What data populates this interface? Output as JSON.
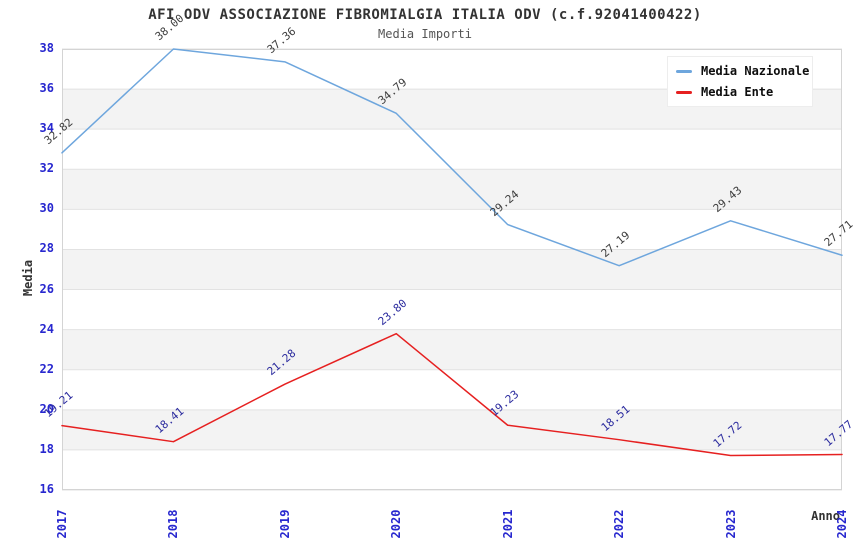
{
  "header": {
    "title": "AFI ODV ASSOCIAZIONE FIBROMIALGIA ITALIA ODV (c.f.92041400422)",
    "subtitle": "Media Importi"
  },
  "chart_data": {
    "type": "line",
    "title": "AFI ODV ASSOCIAZIONE FIBROMIALGIA ITALIA ODV (c.f.92041400422)",
    "subtitle": "Media Importi",
    "xlabel": "Anno",
    "ylabel": "Media",
    "categories": [
      "2017",
      "2018",
      "2019",
      "2020",
      "2021",
      "2022",
      "2023",
      "2024"
    ],
    "series": [
      {
        "name": "Media Nazionale",
        "color": "#6ea6dd",
        "label_color": "#3d3d3d",
        "values": [
          32.82,
          38.0,
          37.36,
          34.79,
          29.24,
          27.19,
          29.43,
          27.71
        ]
      },
      {
        "name": "Media Ente",
        "color": "#e62020",
        "label_color": "#2a2a9e",
        "values": [
          19.21,
          18.41,
          21.28,
          23.8,
          19.23,
          18.51,
          17.72,
          17.77
        ]
      }
    ],
    "ylim": [
      16,
      38
    ],
    "y_ticks": [
      16,
      18,
      20,
      22,
      24,
      26,
      28,
      30,
      32,
      34,
      36,
      38
    ],
    "grid": "horizontal",
    "legend_position": "top-right",
    "colors": {
      "tick_label": "#2727cf",
      "band_fill": "#f3f3f3",
      "gridline": "#e2e2e2",
      "plot_border": "#d4d4d4",
      "title_text": "#333333",
      "subtitle_text": "#555555"
    }
  }
}
